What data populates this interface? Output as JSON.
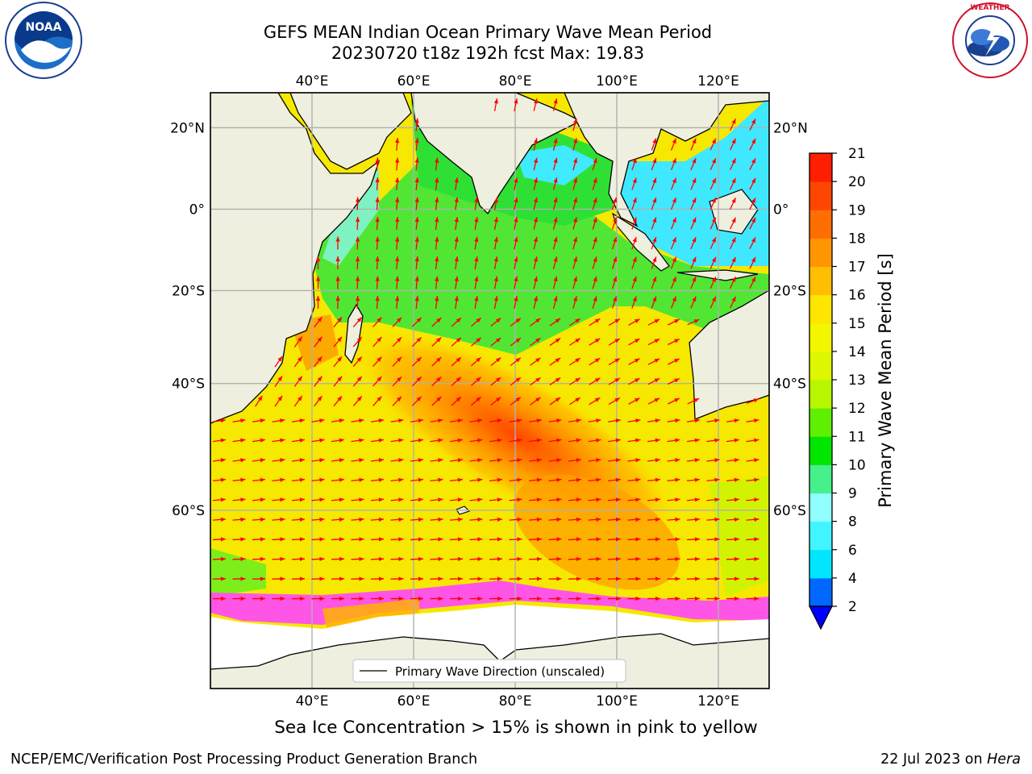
{
  "header": {
    "title_line1": "GEFS MEAN Indian Ocean Primary Wave Mean Period",
    "title_line2": "20230720 t18z 192h fcst   Max: 19.83"
  },
  "logos": {
    "left": {
      "name": "NOAA",
      "text": "NOAA",
      "ring_text": "NATIONAL OCEANIC AND ATMOSPHERIC ADMINISTRATION · U.S. DEPARTMENT OF COMMERCE"
    },
    "right": {
      "name": "National Weather Service",
      "ring_text": "NATIONAL WEATHER SERVICE"
    }
  },
  "map": {
    "lon_range": [
      20,
      130
    ],
    "lat_range": [
      -76,
      28
    ],
    "lon_ticks_top": [
      "40°E",
      "60°E",
      "80°E",
      "100°E",
      "120°E"
    ],
    "lon_ticks_bottom": [
      "40°E",
      "60°E",
      "80°E",
      "100°E",
      "120°E"
    ],
    "lat_ticks_left": [
      "20°N",
      "0°",
      "20°S",
      "40°S",
      "60°S"
    ],
    "lat_ticks_right": [
      "20°N",
      "0°",
      "20°S",
      "40°S",
      "60°S"
    ],
    "legend_label": "Primary Wave Direction (unscaled)",
    "colors": {
      "land": "#efefdf",
      "ice_free": "#ffffff",
      "arrow": "#ff0000",
      "grid": "#b0b0b0"
    }
  },
  "colorbar": {
    "label": "Primary Wave Mean Period [s]",
    "tick_labels": [
      "2",
      "4",
      "6",
      "8",
      "9",
      "10",
      "11",
      "12",
      "13",
      "14",
      "15",
      "16",
      "17",
      "18",
      "19",
      "20",
      "21"
    ],
    "colors": [
      "#0068ff",
      "#00e6ff",
      "#40f5ff",
      "#90ffff",
      "#46f08a",
      "#00e600",
      "#5fef00",
      "#b8f600",
      "#dcf700",
      "#f2f700",
      "#ffe600",
      "#ffbe00",
      "#ff9600",
      "#ff6e00",
      "#ff4600",
      "#ff1e00"
    ],
    "extend_color": "#0000ff"
  },
  "caption": "Sea Ice Concentration > 15% is shown in pink to yellow",
  "footer": {
    "left": "NCEP/EMC/Verification Post Processing Product Generation Branch",
    "right_prefix": "22 Jul 2023 on ",
    "right_machine": "Hera"
  }
}
